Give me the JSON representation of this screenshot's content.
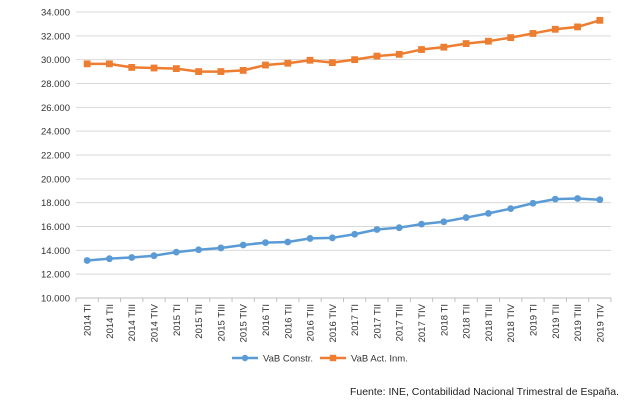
{
  "chart_data": {
    "type": "line",
    "categories": [
      "2014 TI",
      "2014 TII",
      "2014 TIII",
      "2014 TIV",
      "2015 TI",
      "2015 TII",
      "2015 TIII",
      "2015 TIV",
      "2016 TI",
      "2016 TII",
      "2016 TIII",
      "2016 TIV",
      "2017 TI",
      "2017 TII",
      "2017 TIII",
      "2017 TIV",
      "2018 TI",
      "2018 TII",
      "2018 TIII",
      "2018 TIV",
      "2019 TI",
      "2019 TII",
      "2019 TIII",
      "2019 TIV"
    ],
    "series": [
      {
        "name": "VaB Constr.",
        "color": "#5b9bd5",
        "marker": "circle",
        "values": [
          13150,
          13300,
          13400,
          13550,
          13850,
          14050,
          14200,
          14450,
          14650,
          14700,
          15000,
          15050,
          15350,
          15750,
          15900,
          16200,
          16400,
          16750,
          17100,
          17500,
          17950,
          18300,
          18350,
          18250
        ]
      },
      {
        "name": "VaB Act. Inm.",
        "color": "#ed7d31",
        "marker": "square",
        "values": [
          29650,
          29650,
          29350,
          29300,
          29250,
          29000,
          29000,
          29100,
          29550,
          29700,
          29950,
          29750,
          30000,
          30300,
          30450,
          30850,
          31050,
          31350,
          31550,
          31850,
          32200,
          32550,
          32750,
          33300
        ]
      }
    ],
    "ylim": [
      10000,
      34000
    ],
    "ytick_step": 2000,
    "ytick_labels": [
      "10.000",
      "12.000",
      "14.000",
      "16.000",
      "18.000",
      "20.000",
      "22.000",
      "24.000",
      "26.000",
      "28.000",
      "30.000",
      "32.000",
      "34.000"
    ],
    "grid": true,
    "legend_position": "bottom"
  },
  "source_note": "Fuente: INE, Contabilidad Nacional Trimestral de España."
}
